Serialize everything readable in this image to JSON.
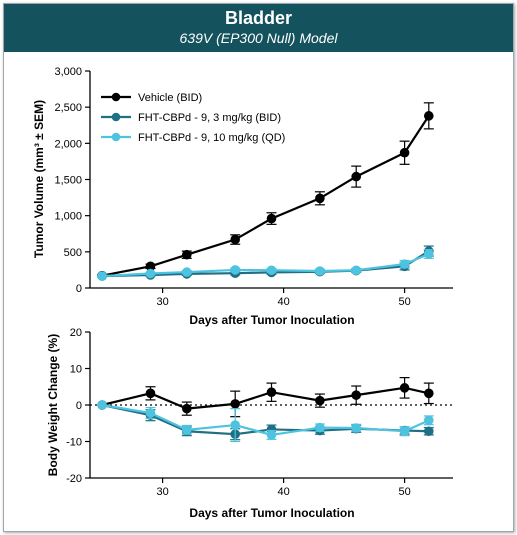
{
  "header": {
    "title": "Bladder",
    "subtitle": "639V (EP300 Null) Model"
  },
  "colors": {
    "header_bg": "#14525e",
    "vehicle": "#000000",
    "fht_3": "#1f6f85",
    "fht_10": "#4ec3df"
  },
  "chart_data": [
    {
      "type": "line",
      "xlabel": "Days after Tumor Inoculation",
      "ylabel": "Tumor Volume (mm³ ± SEM)",
      "xlim": [
        24,
        54
      ],
      "ylim": [
        0,
        3000
      ],
      "xticks": [
        30,
        40,
        50
      ],
      "yticks": [
        0,
        500,
        1000,
        1500,
        2000,
        2500,
        3000
      ],
      "ytick_labels": [
        "0",
        "500",
        "1,000",
        "1,500",
        "2,000",
        "2,500",
        "3,000"
      ],
      "legend_position": "top-left",
      "series": [
        {
          "name": "Vehicle (BID)",
          "color": "#000000",
          "x": [
            25,
            29,
            32,
            36,
            39,
            43,
            46,
            50,
            52
          ],
          "y": [
            170,
            300,
            460,
            670,
            960,
            1240,
            1540,
            1870,
            2380
          ],
          "err": [
            15,
            30,
            50,
            65,
            80,
            90,
            145,
            160,
            180
          ]
        },
        {
          "name": "FHT-CBPd - 9, 3 mg/kg (BID)",
          "color": "#1f6f85",
          "x": [
            25,
            29,
            32,
            36,
            39,
            43,
            46,
            50,
            52
          ],
          "y": [
            165,
            180,
            195,
            205,
            215,
            225,
            240,
            300,
            510
          ],
          "err": [
            10,
            15,
            20,
            25,
            25,
            25,
            25,
            50,
            70
          ]
        },
        {
          "name": "FHT-CBPd - 9, 10 mg/kg (QD)",
          "color": "#4ec3df",
          "x": [
            25,
            29,
            32,
            36,
            39,
            43,
            46,
            50,
            52
          ],
          "y": [
            165,
            200,
            220,
            250,
            245,
            235,
            245,
            330,
            470
          ],
          "err": [
            10,
            15,
            20,
            25,
            25,
            25,
            25,
            50,
            60
          ]
        }
      ]
    },
    {
      "type": "line",
      "xlabel": "Days after Tumor Inoculation",
      "ylabel": "Body Weight Change  (%)",
      "xlim": [
        24,
        54
      ],
      "ylim": [
        -20,
        20
      ],
      "xticks": [
        30,
        40,
        50
      ],
      "yticks": [
        -20,
        -10,
        0,
        10,
        20
      ],
      "reference_line_y": 0,
      "series": [
        {
          "color": "#000000",
          "x": [
            25,
            29,
            32,
            36,
            39,
            43,
            46,
            50,
            52
          ],
          "y": [
            0,
            3.2,
            -1.0,
            0.3,
            3.5,
            1.2,
            2.7,
            4.7,
            3.2
          ],
          "err": [
            0,
            1.8,
            1.8,
            3.5,
            2.5,
            1.8,
            2.5,
            2.8,
            2.8
          ]
        },
        {
          "color": "#1f6f85",
          "x": [
            25,
            29,
            32,
            36,
            39,
            43,
            46,
            50,
            52
          ],
          "y": [
            0,
            -2.8,
            -7.2,
            -8.0,
            -6.7,
            -7.0,
            -6.5,
            -7.0,
            -7.2
          ],
          "err": [
            0,
            1.5,
            1.2,
            1.5,
            1.2,
            1.0,
            1.0,
            1.0,
            1.0
          ]
        },
        {
          "color": "#4ec3df",
          "x": [
            25,
            29,
            32,
            36,
            39,
            43,
            46,
            50,
            52
          ],
          "y": [
            0,
            -2.2,
            -6.8,
            -5.5,
            -8.2,
            -6.2,
            -6.3,
            -7.2,
            -4.2
          ],
          "err": [
            0,
            1.5,
            1.2,
            4.5,
            1.2,
            1.0,
            1.0,
            1.2,
            1.2
          ]
        }
      ]
    }
  ]
}
